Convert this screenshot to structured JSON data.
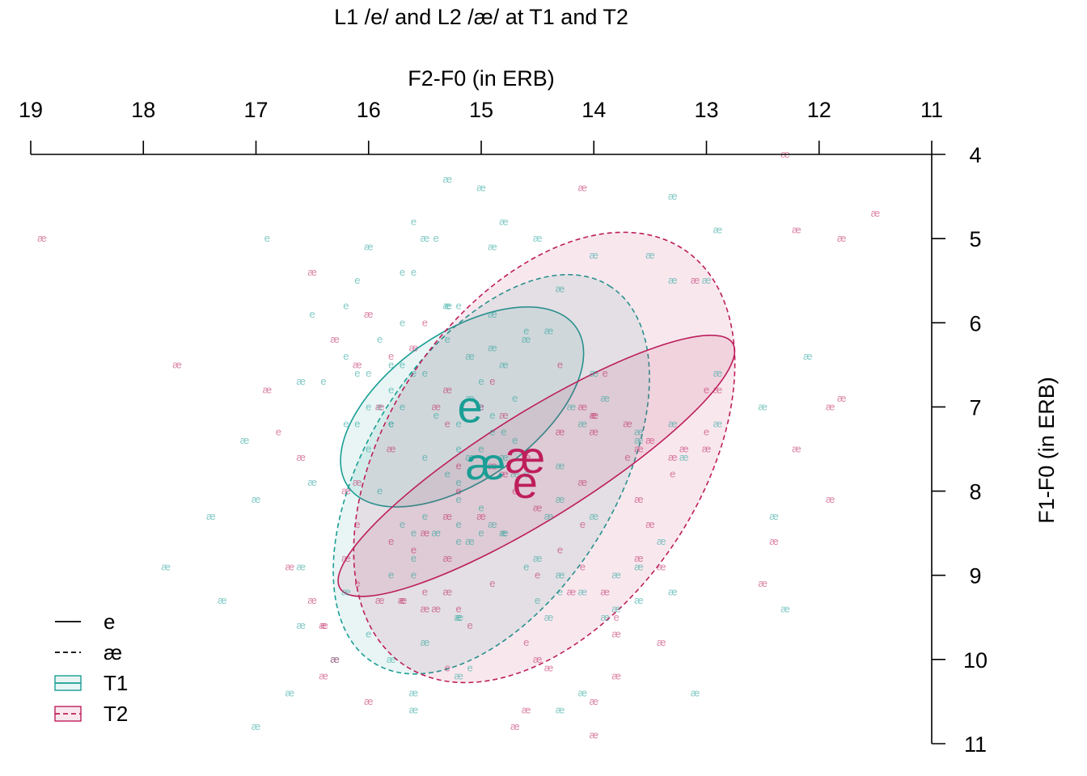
{
  "chart_data": {
    "type": "scatter",
    "title": "L1 /e/ and L2 /æ/ at T1 and T2",
    "xlabel": "F2-F0 (in ERB)",
    "ylabel": "F1-F0 (in ERB)",
    "xlim": [
      19,
      11
    ],
    "ylim": [
      4,
      11
    ],
    "x_reversed": true,
    "y_reversed": true,
    "x_axis_position": "top",
    "y_axis_position": "right",
    "x_ticks": [
      "19",
      "18",
      "17",
      "16",
      "15",
      "14",
      "13",
      "12",
      "11"
    ],
    "y_ticks": [
      "4",
      "5",
      "6",
      "7",
      "8",
      "9",
      "10",
      "11"
    ],
    "grid": false,
    "legend_position": "bottom-left",
    "colors": {
      "T1": "#1a9e95",
      "T2": "#be1e5c"
    },
    "legend": [
      {
        "label": "e",
        "line": "solid",
        "color": "#000000"
      },
      {
        "label": "æ",
        "line": "dashed",
        "color": "#000000"
      },
      {
        "label": "T1",
        "line": "solid",
        "color": "#1a9e95"
      },
      {
        "label": "T2",
        "line": "dashed",
        "color": "#be1e5c"
      }
    ],
    "ellipses": [
      {
        "vowel": "e",
        "time": "T1",
        "line": "solid",
        "cx": 15.17,
        "cy": 7.0,
        "rx": 2.47,
        "ry": 1.75,
        "angle": -35
      },
      {
        "vowel": "æ",
        "time": "T1",
        "line": "dashed",
        "cx": 14.91,
        "cy": 7.8,
        "rx": 3.95,
        "ry": 2.95,
        "angle": -58
      },
      {
        "vowel": "e",
        "time": "T2",
        "line": "solid",
        "cx": 14.51,
        "cy": 7.7,
        "rx": 4.11,
        "ry": 1.26,
        "angle": -32
      },
      {
        "vowel": "æ",
        "time": "T2",
        "line": "dashed",
        "cx": 14.44,
        "cy": 7.6,
        "rx": 4.45,
        "ry": 3.7,
        "angle": -56
      }
    ],
    "centroids": [
      {
        "label": "e",
        "time": "T1",
        "x": 15.1,
        "y": 7.0
      },
      {
        "label": "æ",
        "time": "T1",
        "x": 14.96,
        "y": 7.68
      },
      {
        "label": "æ",
        "time": "T2",
        "x": 14.61,
        "y": 7.6
      },
      {
        "label": "e",
        "time": "T2",
        "x": 14.61,
        "y": 7.9
      }
    ],
    "series": [
      {
        "vowel": "e",
        "time": "T1",
        "points": [
          [
            15.6,
            4.8
          ],
          [
            15.7,
            5.4
          ],
          [
            15.6,
            5.4
          ],
          [
            16.1,
            5.5
          ],
          [
            16.2,
            5.8
          ],
          [
            15.2,
            5.8
          ],
          [
            15.3,
            5.8
          ],
          [
            15.7,
            6.0
          ],
          [
            15.3,
            6.2
          ],
          [
            15.9,
            6.2
          ],
          [
            16.2,
            6.4
          ],
          [
            15.8,
            6.5
          ],
          [
            16.1,
            6.6
          ],
          [
            16.0,
            6.6
          ],
          [
            15.7,
            6.5
          ],
          [
            15.5,
            6.6
          ],
          [
            15.6,
            6.6
          ],
          [
            16.4,
            6.7
          ],
          [
            15.8,
            6.8
          ],
          [
            15.7,
            7.0
          ],
          [
            15.9,
            7.0
          ],
          [
            15.8,
            7.2
          ],
          [
            16.2,
            7.2
          ],
          [
            16.1,
            7.2
          ],
          [
            15.8,
            7.2
          ],
          [
            15.0,
            7.0
          ],
          [
            15.2,
            7.2
          ],
          [
            16.0,
            7.0
          ],
          [
            16.9,
            5.0
          ],
          [
            16.5,
            5.9
          ],
          [
            16.0,
            7.5
          ],
          [
            15.2,
            7.5
          ],
          [
            15.0,
            7.5
          ],
          [
            14.9,
            7.3
          ],
          [
            14.9,
            7.1
          ],
          [
            15.0,
            6.7
          ],
          [
            14.7,
            6.9
          ],
          [
            14.7,
            7.4
          ],
          [
            14.6,
            7.8
          ],
          [
            15.3,
            7.8
          ],
          [
            15.2,
            7.9
          ],
          [
            15.5,
            7.6
          ],
          [
            15.2,
            8.1
          ],
          [
            15.0,
            8.2
          ],
          [
            15.2,
            8.4
          ],
          [
            15.5,
            8.3
          ],
          [
            15.9,
            8.0
          ],
          [
            15.7,
            8.4
          ],
          [
            15.6,
            8.5
          ],
          [
            15.0,
            8.5
          ],
          [
            14.8,
            8.5
          ],
          [
            15.2,
            8.6
          ],
          [
            15.6,
            8.8
          ],
          [
            15.6,
            9.0
          ],
          [
            14.6,
            8.9
          ],
          [
            14.3,
            9.2
          ],
          [
            14.5,
            9.3
          ],
          [
            15.8,
            9.0
          ],
          [
            15.2,
            9.5
          ],
          [
            16.0,
            9.7
          ],
          [
            15.1,
            10.1
          ],
          [
            15.4,
            5.0
          ],
          [
            14.6,
            6.1
          ],
          [
            14.8,
            7.3
          ],
          [
            15.4,
            7.1
          ]
        ]
      },
      {
        "vowel": "æ",
        "time": "T1",
        "points": [
          [
            15.3,
            4.3
          ],
          [
            15.0,
            4.4
          ],
          [
            14.8,
            4.8
          ],
          [
            13.3,
            4.5
          ],
          [
            14.5,
            5.0
          ],
          [
            15.5,
            5.0
          ],
          [
            14.9,
            5.1
          ],
          [
            16.0,
            5.1
          ],
          [
            14.0,
            5.2
          ],
          [
            13.5,
            5.2
          ],
          [
            13.3,
            5.5
          ],
          [
            14.3,
            5.6
          ],
          [
            15.3,
            5.8
          ],
          [
            14.9,
            5.9
          ],
          [
            14.4,
            6.1
          ],
          [
            14.6,
            6.2
          ],
          [
            14.9,
            6.3
          ],
          [
            15.1,
            6.4
          ],
          [
            14.8,
            6.5
          ],
          [
            14.0,
            6.6
          ],
          [
            13.9,
            6.9
          ],
          [
            14.2,
            7.0
          ],
          [
            14.1,
            7.2
          ],
          [
            13.3,
            7.2
          ],
          [
            13.6,
            7.3
          ],
          [
            13.6,
            7.4
          ],
          [
            13.2,
            7.6
          ],
          [
            15.1,
            7.6
          ],
          [
            14.8,
            7.6
          ],
          [
            14.3,
            7.7
          ],
          [
            14.7,
            7.8
          ],
          [
            14.3,
            8.1
          ],
          [
            14.4,
            8.3
          ],
          [
            14.9,
            8.4
          ],
          [
            14.8,
            8.5
          ],
          [
            15.4,
            8.5
          ],
          [
            15.1,
            8.6
          ],
          [
            14.5,
            8.8
          ],
          [
            14.3,
            9.0
          ],
          [
            14.1,
            9.2
          ],
          [
            13.8,
            9.0
          ],
          [
            13.6,
            9.3
          ],
          [
            13.3,
            9.2
          ],
          [
            13.8,
            9.4
          ],
          [
            13.9,
            9.5
          ],
          [
            14.4,
            9.5
          ],
          [
            15.2,
            9.5
          ],
          [
            15.5,
            9.8
          ],
          [
            15.8,
            10.0
          ],
          [
            15.2,
            10.2
          ],
          [
            15.6,
            10.4
          ],
          [
            15.6,
            10.6
          ],
          [
            14.3,
            10.6
          ],
          [
            14.1,
            10.4
          ],
          [
            13.1,
            10.4
          ],
          [
            12.3,
            9.4
          ],
          [
            12.4,
            8.3
          ],
          [
            12.9,
            7.2
          ],
          [
            12.9,
            6.6
          ],
          [
            13.0,
            5.5
          ],
          [
            12.9,
            4.9
          ],
          [
            12.1,
            6.4
          ],
          [
            16.6,
            8.9
          ],
          [
            17.4,
            8.3
          ],
          [
            17.3,
            9.3
          ],
          [
            17.8,
            8.9
          ],
          [
            17.1,
            7.4
          ],
          [
            17.0,
            8.1
          ],
          [
            16.5,
            7.9
          ],
          [
            16.6,
            9.6
          ],
          [
            16.3,
            10.0
          ],
          [
            16.2,
            9.2
          ],
          [
            16.7,
            10.4
          ],
          [
            17.0,
            10.8
          ],
          [
            16.6,
            6.7
          ],
          [
            15.1,
            6.9
          ],
          [
            14.0,
            8.3
          ],
          [
            13.6,
            8.9
          ],
          [
            13.4,
            8.6
          ],
          [
            12.5,
            7.0
          ]
        ]
      },
      {
        "vowel": "e",
        "time": "T2",
        "points": [
          [
            15.5,
            6.0
          ],
          [
            15.8,
            6.4
          ],
          [
            15.3,
            7.2
          ],
          [
            15.2,
            7.7
          ],
          [
            15.2,
            8.0
          ],
          [
            14.9,
            6.7
          ],
          [
            14.3,
            6.5
          ],
          [
            14.0,
            7.1
          ],
          [
            13.9,
            6.6
          ],
          [
            14.7,
            8.0
          ],
          [
            14.1,
            8.4
          ],
          [
            14.3,
            8.7
          ],
          [
            14.5,
            9.0
          ],
          [
            14.9,
            9.1
          ],
          [
            15.2,
            9.4
          ],
          [
            15.5,
            9.2
          ],
          [
            15.6,
            8.7
          ],
          [
            16.1,
            9.1
          ],
          [
            16.4,
            9.6
          ],
          [
            15.3,
            10.1
          ],
          [
            14.1,
            8.9
          ],
          [
            13.8,
            9.5
          ],
          [
            14.6,
            9.8
          ],
          [
            13.7,
            7.6
          ],
          [
            13.3,
            7.8
          ],
          [
            13.0,
            6.8
          ],
          [
            13.0,
            7.3
          ],
          [
            16.8,
            7.3
          ],
          [
            15.1,
            9.6
          ],
          [
            16.1,
            8.4
          ],
          [
            15.0,
            7.0
          ],
          [
            15.8,
            8.6
          ],
          [
            15.7,
            9.3
          ]
        ]
      },
      {
        "vowel": "æ",
        "time": "T2",
        "points": [
          [
            18.9,
            5.0
          ],
          [
            17.7,
            6.5
          ],
          [
            16.9,
            6.8
          ],
          [
            16.6,
            7.6
          ],
          [
            16.7,
            8.9
          ],
          [
            16.5,
            9.3
          ],
          [
            16.2,
            8.0
          ],
          [
            16.2,
            8.8
          ],
          [
            16.4,
            9.6
          ],
          [
            16.3,
            10.0
          ],
          [
            16.4,
            10.2
          ],
          [
            16.0,
            10.5
          ],
          [
            15.9,
            9.3
          ],
          [
            15.7,
            9.3
          ],
          [
            15.5,
            9.4
          ],
          [
            15.4,
            9.4
          ],
          [
            16.1,
            7.9
          ],
          [
            16.1,
            6.5
          ],
          [
            16.3,
            6.2
          ],
          [
            16.5,
            5.4
          ],
          [
            16.0,
            5.9
          ],
          [
            15.6,
            6.3
          ],
          [
            15.3,
            6.8
          ],
          [
            15.4,
            7.0
          ],
          [
            15.8,
            7.5
          ],
          [
            15.5,
            8.5
          ],
          [
            15.3,
            8.3
          ],
          [
            15.0,
            8.3
          ],
          [
            15.3,
            8.8
          ],
          [
            14.8,
            7.8
          ],
          [
            14.5,
            8.2
          ],
          [
            14.6,
            7.6
          ],
          [
            14.8,
            7.1
          ],
          [
            14.3,
            7.3
          ],
          [
            14.1,
            7.0
          ],
          [
            14.0,
            7.1
          ],
          [
            14.0,
            7.3
          ],
          [
            13.7,
            7.2
          ],
          [
            13.6,
            7.5
          ],
          [
            13.5,
            7.4
          ],
          [
            13.3,
            7.6
          ],
          [
            13.2,
            7.5
          ],
          [
            13.6,
            8.1
          ],
          [
            13.5,
            8.4
          ],
          [
            13.6,
            8.8
          ],
          [
            13.4,
            8.9
          ],
          [
            13.9,
            9.2
          ],
          [
            14.2,
            9.2
          ],
          [
            13.8,
            9.7
          ],
          [
            13.4,
            9.8
          ],
          [
            13.8,
            10.2
          ],
          [
            14.4,
            10.1
          ],
          [
            14.6,
            10.6
          ],
          [
            14.0,
            10.5
          ],
          [
            14.5,
            10.0
          ],
          [
            14.0,
            10.9
          ],
          [
            14.1,
            4.4
          ],
          [
            12.3,
            4.0
          ],
          [
            12.2,
            4.9
          ],
          [
            11.8,
            5.0
          ],
          [
            11.5,
            4.7
          ],
          [
            11.9,
            7.0
          ],
          [
            11.8,
            6.9
          ],
          [
            11.9,
            8.1
          ],
          [
            12.2,
            7.5
          ],
          [
            12.4,
            8.6
          ],
          [
            12.5,
            9.1
          ],
          [
            13.1,
            5.5
          ],
          [
            12.9,
            6.8
          ],
          [
            13.0,
            7.5
          ],
          [
            14.7,
            10.8
          ],
          [
            14.1,
            7.9
          ],
          [
            15.9,
            7.0
          ],
          [
            15.3,
            9.2
          ],
          [
            14.9,
            7.7
          ]
        ]
      }
    ]
  }
}
